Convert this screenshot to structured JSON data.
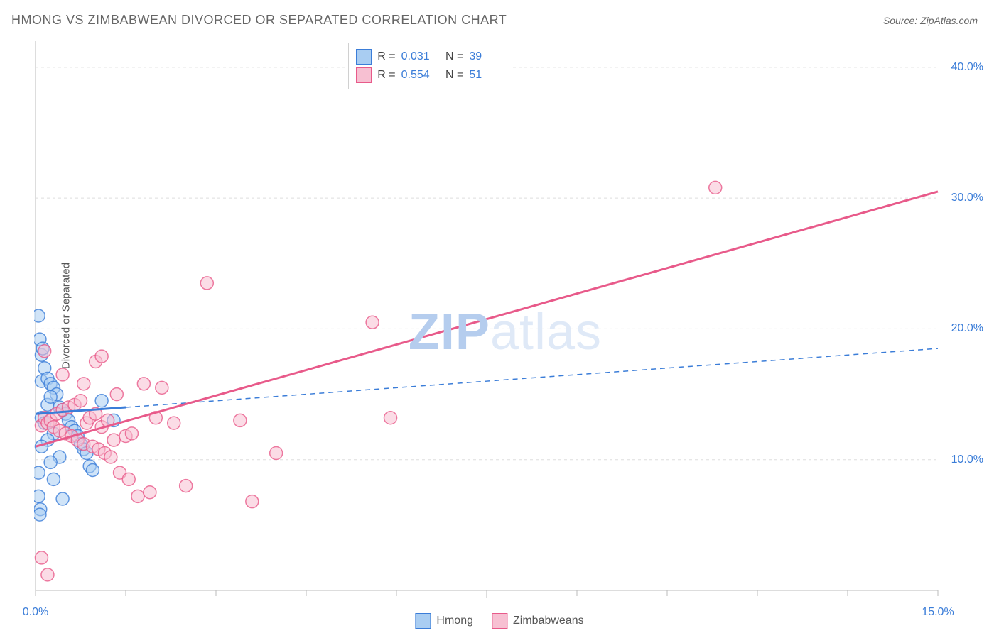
{
  "header": {
    "title": "HMONG VS ZIMBABWEAN DIVORCED OR SEPARATED CORRELATION CHART",
    "source": "Source: ZipAtlas.com"
  },
  "chart": {
    "type": "scatter",
    "ylabel": "Divorced or Separated",
    "xlim": [
      0,
      15
    ],
    "ylim": [
      0,
      42
    ],
    "xtick_min_label": "0.0%",
    "xtick_max_label": "15.0%",
    "ytick_labels": [
      "10.0%",
      "20.0%",
      "30.0%",
      "40.0%"
    ],
    "ytick_values": [
      10,
      20,
      30,
      40
    ],
    "xtick_minor_step": 1.5,
    "background_color": "#ffffff",
    "grid_color": "#dddddd",
    "axis_color": "#bbbbbb",
    "marker_radius": 9,
    "marker_opacity": 0.55,
    "watermark": "ZIPatlas",
    "series": [
      {
        "name": "Hmong",
        "color_stroke": "#3b7dd8",
        "color_fill": "#a9cdf2",
        "R": "0.031",
        "N": "39",
        "regression": {
          "x1": 0,
          "y1": 13.5,
          "x2": 1.5,
          "y2": 13.8,
          "extend_x2": 15,
          "extend_y2": 18.5,
          "solid_until_x": 1.5
        },
        "points": [
          [
            0.05,
            21.0
          ],
          [
            0.07,
            19.2
          ],
          [
            0.1,
            18.0
          ],
          [
            0.12,
            18.5
          ],
          [
            0.15,
            17.0
          ],
          [
            0.1,
            16.0
          ],
          [
            0.2,
            16.2
          ],
          [
            0.25,
            15.8
          ],
          [
            0.3,
            15.5
          ],
          [
            0.35,
            15.0
          ],
          [
            0.2,
            14.2
          ],
          [
            0.25,
            14.8
          ],
          [
            0.4,
            14.0
          ],
          [
            0.45,
            13.8
          ],
          [
            0.5,
            13.5
          ],
          [
            0.1,
            13.2
          ],
          [
            0.15,
            12.8
          ],
          [
            0.55,
            13.0
          ],
          [
            0.6,
            12.5
          ],
          [
            0.3,
            12.0
          ],
          [
            0.65,
            12.2
          ],
          [
            0.7,
            11.8
          ],
          [
            0.2,
            11.5
          ],
          [
            0.75,
            11.2
          ],
          [
            0.1,
            11.0
          ],
          [
            0.8,
            10.8
          ],
          [
            0.85,
            10.5
          ],
          [
            0.4,
            10.2
          ],
          [
            0.25,
            9.8
          ],
          [
            0.9,
            9.5
          ],
          [
            0.05,
            9.0
          ],
          [
            0.95,
            9.2
          ],
          [
            0.3,
            8.5
          ],
          [
            0.05,
            7.2
          ],
          [
            0.45,
            7.0
          ],
          [
            0.08,
            6.2
          ],
          [
            0.07,
            5.8
          ],
          [
            1.1,
            14.5
          ],
          [
            1.3,
            13.0
          ]
        ]
      },
      {
        "name": "Zimbabweans",
        "color_stroke": "#e85a8a",
        "color_fill": "#f7c0d2",
        "R": "0.554",
        "N": "51",
        "regression": {
          "x1": 0,
          "y1": 11.0,
          "x2": 15,
          "y2": 30.5,
          "solid_until_x": 15
        },
        "points": [
          [
            0.1,
            12.6
          ],
          [
            0.15,
            13.2
          ],
          [
            0.2,
            12.8
          ],
          [
            0.25,
            13.0
          ],
          [
            0.3,
            12.5
          ],
          [
            0.35,
            13.5
          ],
          [
            0.4,
            12.2
          ],
          [
            0.45,
            13.8
          ],
          [
            0.5,
            12.0
          ],
          [
            0.55,
            14.0
          ],
          [
            0.6,
            11.8
          ],
          [
            0.65,
            14.2
          ],
          [
            0.7,
            11.5
          ],
          [
            0.75,
            14.5
          ],
          [
            0.8,
            11.2
          ],
          [
            0.85,
            12.8
          ],
          [
            0.9,
            13.2
          ],
          [
            0.95,
            11.0
          ],
          [
            1.0,
            13.5
          ],
          [
            1.05,
            10.8
          ],
          [
            1.1,
            12.5
          ],
          [
            1.15,
            10.5
          ],
          [
            1.2,
            13.0
          ],
          [
            1.25,
            10.2
          ],
          [
            1.3,
            11.5
          ],
          [
            1.4,
            9.0
          ],
          [
            1.5,
            11.8
          ],
          [
            1.55,
            8.5
          ],
          [
            1.6,
            12.0
          ],
          [
            1.7,
            7.2
          ],
          [
            1.8,
            15.8
          ],
          [
            1.9,
            7.5
          ],
          [
            2.0,
            13.2
          ],
          [
            2.1,
            15.5
          ],
          [
            2.3,
            12.8
          ],
          [
            2.5,
            8.0
          ],
          [
            1.0,
            17.5
          ],
          [
            1.1,
            17.9
          ],
          [
            1.35,
            15.0
          ],
          [
            0.15,
            18.3
          ],
          [
            0.45,
            16.5
          ],
          [
            2.85,
            23.5
          ],
          [
            4.0,
            10.5
          ],
          [
            3.4,
            13.0
          ],
          [
            3.6,
            6.8
          ],
          [
            5.6,
            20.5
          ],
          [
            5.9,
            13.2
          ],
          [
            11.3,
            30.8
          ],
          [
            0.2,
            1.2
          ],
          [
            0.1,
            2.5
          ],
          [
            0.8,
            15.8
          ]
        ]
      }
    ],
    "bottom_legend": [
      {
        "label": "Hmong",
        "stroke": "#3b7dd8",
        "fill": "#a9cdf2"
      },
      {
        "label": "Zimbabweans",
        "stroke": "#e85a8a",
        "fill": "#f7c0d2"
      }
    ]
  }
}
